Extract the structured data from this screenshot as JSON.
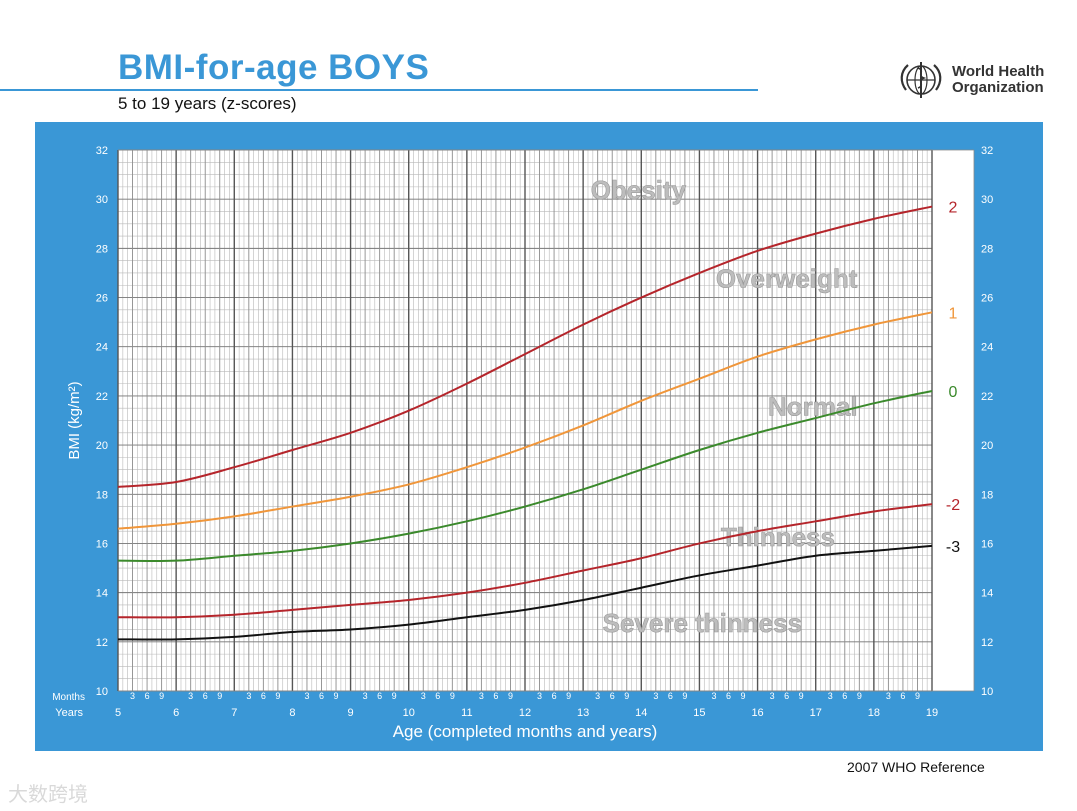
{
  "header": {
    "title": "BMI-for-age  BOYS",
    "subtitle": "5 to 19 years (z-scores)",
    "org_line1": "World Health",
    "org_line2": "Organization",
    "logo_icon": "who-emblem-icon"
  },
  "footer": {
    "reference": "2007  WHO Reference"
  },
  "watermark": {
    "text": "大数跨境"
  },
  "colors": {
    "panel": "#3a97d6",
    "title": "#3a97d6",
    "sd2": "#b5252b",
    "sd1": "#f0963a",
    "sd0": "#3b8a2c",
    "sd3": "#111111"
  },
  "chart_data": {
    "type": "line",
    "xlabel": "Age (completed months and years)",
    "ylabel": "BMI (kg/m²)",
    "row_label_months": "Months",
    "row_label_years": "Years",
    "xlim": [
      5,
      19
    ],
    "ylim": [
      10,
      32
    ],
    "y_ticks": [
      "10",
      "12",
      "14",
      "16",
      "18",
      "20",
      "22",
      "24",
      "26",
      "28",
      "30",
      "32"
    ],
    "x_year_ticks": [
      "5",
      "6",
      "7",
      "8",
      "9",
      "10",
      "11",
      "12",
      "13",
      "14",
      "15",
      "16",
      "17",
      "18",
      "19"
    ],
    "month_labels": [
      "3",
      "6",
      "9"
    ],
    "grid": true,
    "x": [
      5,
      6,
      7,
      8,
      9,
      10,
      11,
      12,
      13,
      14,
      15,
      16,
      17,
      18,
      19
    ],
    "series": [
      {
        "name": "2",
        "color": "#b5252b",
        "values": [
          18.3,
          18.5,
          19.1,
          19.8,
          20.5,
          21.4,
          22.5,
          23.7,
          24.9,
          26.0,
          27.0,
          27.9,
          28.6,
          29.2,
          29.7
        ]
      },
      {
        "name": "1",
        "color": "#f0963a",
        "values": [
          16.6,
          16.8,
          17.1,
          17.5,
          17.9,
          18.4,
          19.1,
          19.9,
          20.8,
          21.8,
          22.7,
          23.6,
          24.3,
          24.9,
          25.4
        ]
      },
      {
        "name": "0",
        "color": "#3b8a2c",
        "values": [
          15.3,
          15.3,
          15.5,
          15.7,
          16.0,
          16.4,
          16.9,
          17.5,
          18.2,
          19.0,
          19.8,
          20.5,
          21.1,
          21.7,
          22.2
        ]
      },
      {
        "name": "-2",
        "color": "#b5252b",
        "values": [
          13.0,
          13.0,
          13.1,
          13.3,
          13.5,
          13.7,
          14.0,
          14.4,
          14.9,
          15.4,
          16.0,
          16.5,
          16.9,
          17.3,
          17.6
        ]
      },
      {
        "name": "-3",
        "color": "#111111",
        "values": [
          12.1,
          12.1,
          12.2,
          12.4,
          12.5,
          12.7,
          13.0,
          13.3,
          13.7,
          14.2,
          14.7,
          15.1,
          15.5,
          15.7,
          15.9
        ]
      }
    ],
    "annotations": [
      {
        "text": "Obesity",
        "x": 13.95,
        "y": 30.0
      },
      {
        "text": "Overweight",
        "x": 16.5,
        "y": 26.4
      },
      {
        "text": "Normal",
        "x": 16.95,
        "y": 21.2
      },
      {
        "text": "Thinness",
        "x": 16.35,
        "y": 15.9
      },
      {
        "text": "Severe thinness",
        "x": 15.05,
        "y": 12.4
      }
    ]
  }
}
